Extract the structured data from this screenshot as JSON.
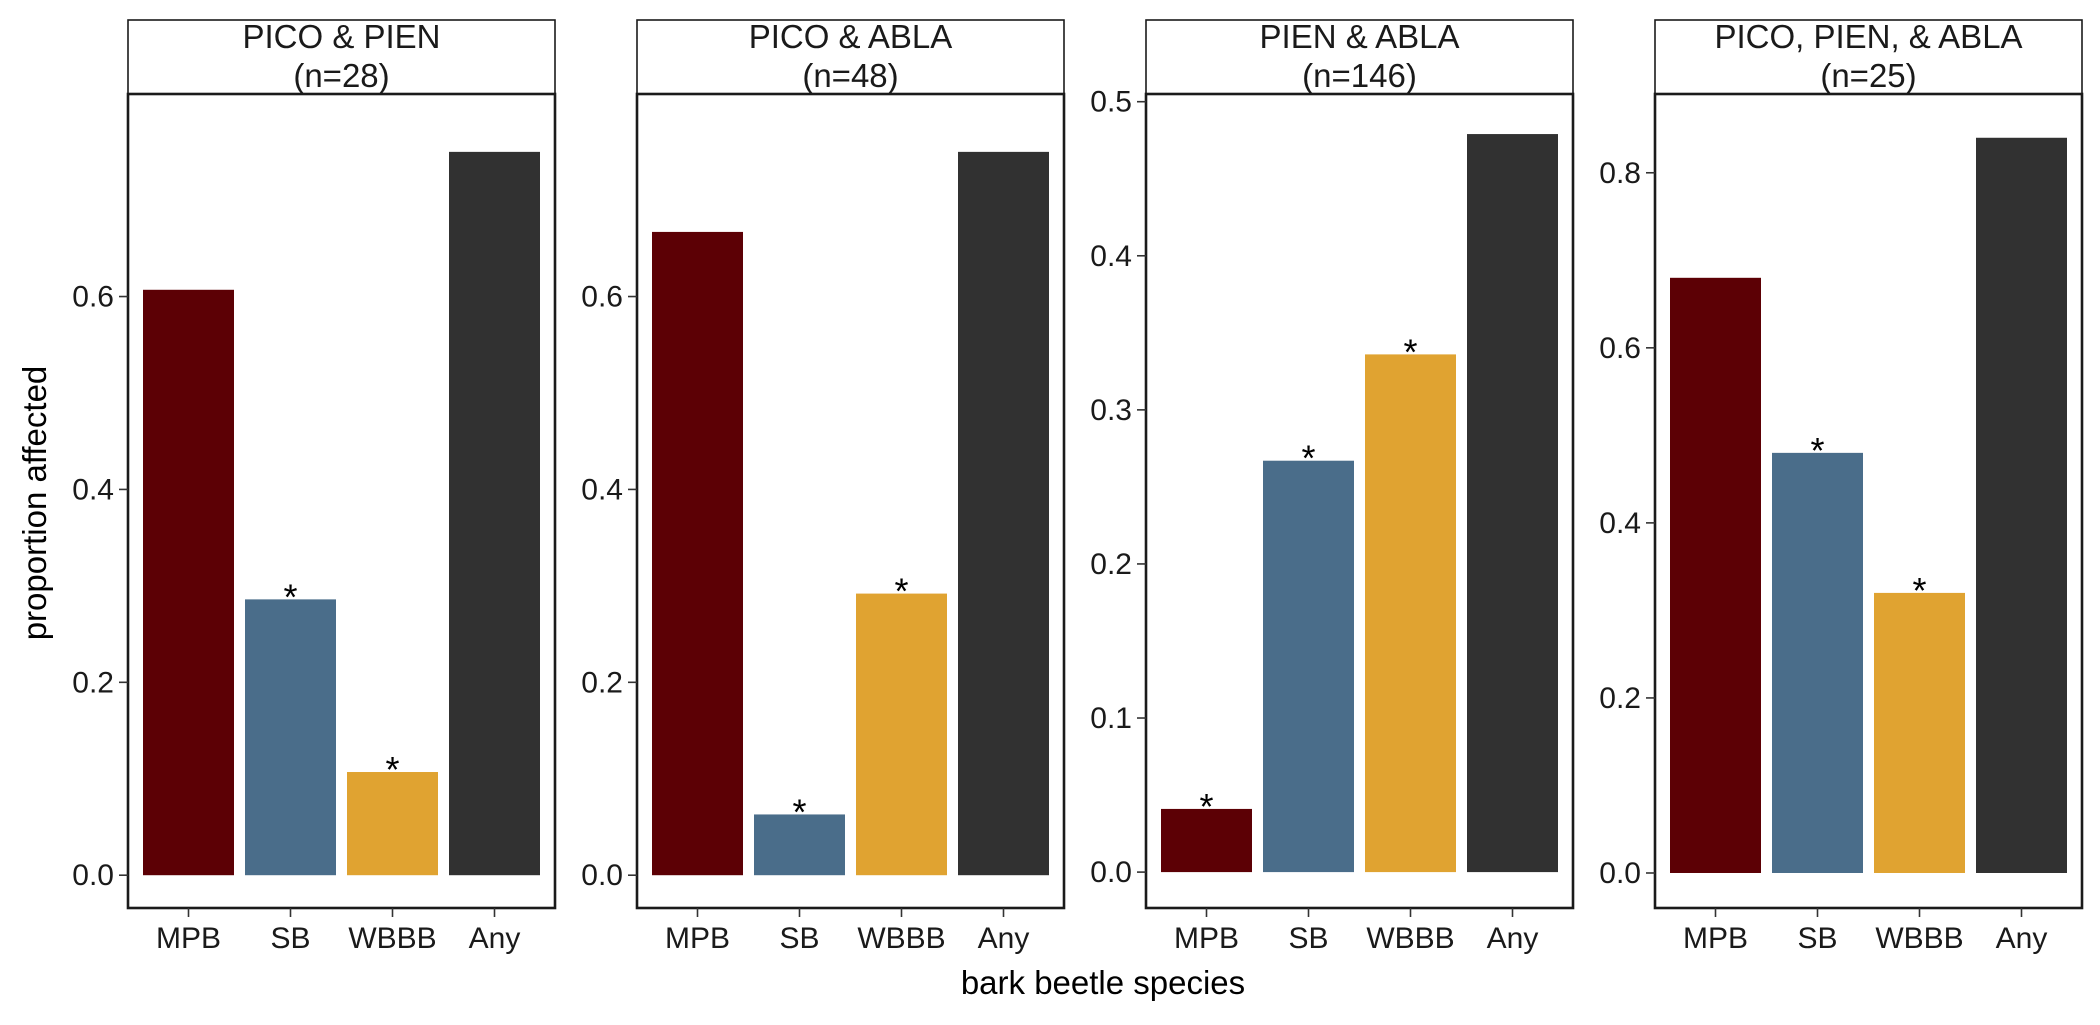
{
  "chart_data": {
    "type": "bar",
    "xlabel": "bark beetle species",
    "ylabel": "proportion affected",
    "categories": [
      "MPB",
      "SB",
      "WBBB",
      "Any"
    ],
    "colors": {
      "MPB": "#5c0005",
      "SB": "#4a6d8a",
      "WBBB": "#e0a331",
      "Any": "#313131"
    },
    "grid": false,
    "legend": "none",
    "significance_marker": "*",
    "panels": [
      {
        "title_line1": "PICO & PIEN",
        "title_line2": "(n=28)",
        "values": [
          0.607,
          0.286,
          0.107,
          0.75
        ],
        "significant": [
          false,
          true,
          true,
          false
        ],
        "ylim": [
          -0.034,
          0.81
        ],
        "yticks": [
          0.0,
          0.2,
          0.4,
          0.6
        ],
        "ytick_labels": [
          "0.0",
          "0.2",
          "0.4",
          "0.6"
        ]
      },
      {
        "title_line1": "PICO & ABLA",
        "title_line2": "(n=48)",
        "values": [
          0.667,
          0.063,
          0.292,
          0.75
        ],
        "significant": [
          false,
          true,
          true,
          false
        ],
        "ylim": [
          -0.034,
          0.81
        ],
        "yticks": [
          0.0,
          0.2,
          0.4,
          0.6
        ],
        "ytick_labels": [
          "0.0",
          "0.2",
          "0.4",
          "0.6"
        ]
      },
      {
        "title_line1": "PIEN & ABLA",
        "title_line2": "(n=146)",
        "values": [
          0.041,
          0.267,
          0.336,
          0.479
        ],
        "significant": [
          true,
          true,
          true,
          false
        ],
        "ylim": [
          -0.0233,
          0.505
        ],
        "yticks": [
          0.0,
          0.1,
          0.2,
          0.3,
          0.4,
          0.5
        ],
        "ytick_labels": [
          "0.0",
          "0.1",
          "0.2",
          "0.3",
          "0.4",
          "0.5"
        ]
      },
      {
        "title_line1": "PICO, PIEN, & ABLA",
        "title_line2": "(n=25)",
        "values": [
          0.68,
          0.48,
          0.32,
          0.84
        ],
        "significant": [
          false,
          true,
          true,
          false
        ],
        "ylim": [
          -0.04,
          0.89
        ],
        "yticks": [
          0.0,
          0.2,
          0.4,
          0.6,
          0.8
        ],
        "ytick_labels": [
          "0.0",
          "0.2",
          "0.4",
          "0.6",
          "0.8"
        ]
      }
    ]
  }
}
